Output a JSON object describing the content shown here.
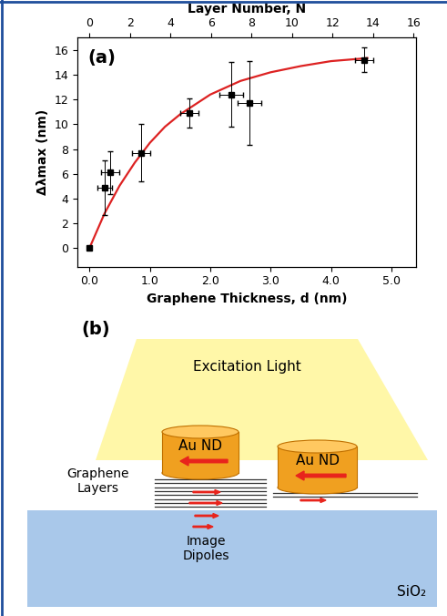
{
  "chart_data": {
    "type": "scatter",
    "panel_label": "(a)",
    "xlabel": "Graphene Thickness, d (nm)",
    "ylabel": "Δλmax (nm)",
    "x2label": "Layer Number, N",
    "x": [
      0.0,
      0.25,
      0.35,
      0.85,
      1.65,
      2.35,
      2.65,
      4.55
    ],
    "values": [
      0.0,
      4.9,
      6.1,
      7.7,
      10.9,
      12.4,
      11.7,
      15.2
    ],
    "xerr": [
      0.0,
      0.12,
      0.15,
      0.15,
      0.15,
      0.2,
      0.2,
      0.15
    ],
    "yerr": [
      0.0,
      2.2,
      1.7,
      2.3,
      1.2,
      2.6,
      3.4,
      1.0
    ],
    "color": "#000000",
    "marker": "square",
    "fit": {
      "type": "line",
      "color": "#dd2222",
      "x": [
        0.0,
        0.25,
        0.5,
        0.75,
        1.0,
        1.25,
        1.5,
        2.0,
        2.5,
        3.0,
        3.5,
        4.0,
        4.5,
        4.6
      ],
      "values": [
        0.0,
        2.8,
        5.05,
        6.9,
        8.5,
        9.8,
        10.8,
        12.4,
        13.5,
        14.2,
        14.7,
        15.1,
        15.3,
        15.35
      ]
    },
    "xlim": [
      -0.2,
      5.4
    ],
    "xticks": [
      {
        "value": 0,
        "label": "0.0"
      },
      {
        "value": 1,
        "label": "1.0"
      },
      {
        "value": 2,
        "label": "2.0"
      },
      {
        "value": 3,
        "label": "3.0"
      },
      {
        "value": 4,
        "label": "4.0"
      },
      {
        "value": 5,
        "label": "5.0"
      }
    ],
    "x2lim": [
      -0.6,
      16.1
    ],
    "x2ticks": [
      0,
      2,
      4,
      6,
      8,
      10,
      12,
      14,
      16
    ],
    "ylim": [
      -1.5,
      17
    ],
    "yticks": [
      0,
      2,
      4,
      6,
      8,
      10,
      12,
      14,
      16
    ]
  },
  "diagram": {
    "panel_label": "(b)",
    "light": "Excitation Light",
    "particles": [
      "Au ND",
      "Au ND"
    ],
    "layers": "Graphene\nLayers",
    "dipoles": "Image\nDipoles",
    "substrate": "SiO₂"
  }
}
